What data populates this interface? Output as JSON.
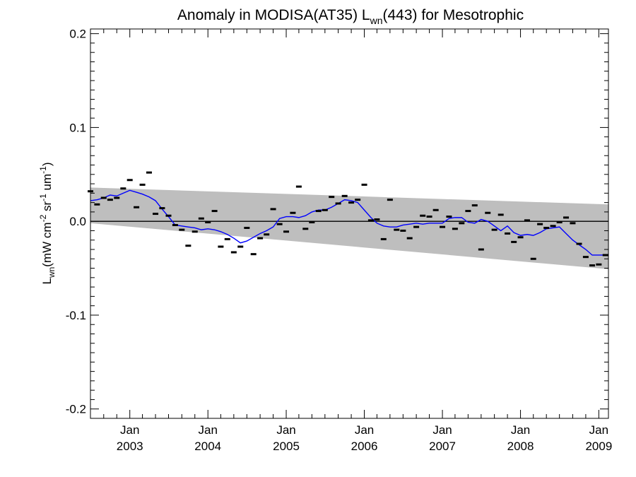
{
  "chart_data": {
    "type": "scatter",
    "title": {
      "prefix": "Anomaly in MODISA(AT35) L",
      "subscript": "wn",
      "suffix": "(443) for Mesotrophic"
    },
    "ylabel": {
      "symbol": "L",
      "symbol_sub": "wn",
      "units_open": "(mW cm",
      "sup1": "-2",
      "mid1": " sr",
      "sup2": "-1",
      "mid2": " um",
      "sup3": "-1",
      "units_close": ")"
    },
    "x_axis": {
      "range": [
        "2002-07-01",
        "2009-02-15"
      ],
      "ticks": [
        {
          "date": "2003-01-01",
          "line1": "Jan",
          "line2": "2003"
        },
        {
          "date": "2004-01-01",
          "line1": "Jan",
          "line2": "2004"
        },
        {
          "date": "2005-01-01",
          "line1": "Jan",
          "line2": "2005"
        },
        {
          "date": "2006-01-01",
          "line1": "Jan",
          "line2": "2006"
        },
        {
          "date": "2007-01-01",
          "line1": "Jan",
          "line2": "2007"
        },
        {
          "date": "2008-01-01",
          "line1": "Jan",
          "line2": "2008"
        },
        {
          "date": "2009-01-01",
          "line1": "Jan",
          "line2": "2009"
        }
      ]
    },
    "y_axis": {
      "range": [
        -0.21,
        0.205
      ],
      "ticks": [
        {
          "value": 0.2,
          "label": "0.2"
        },
        {
          "value": 0.1,
          "label": "0.1"
        },
        {
          "value": 0.0,
          "label": "0.0"
        },
        {
          "value": -0.1,
          "label": "-0.1"
        },
        {
          "value": -0.2,
          "label": "-0.2"
        }
      ]
    },
    "zero_line": 0.0,
    "band": {
      "color": "#bebebe",
      "upper": [
        [
          "2002-07-01",
          0.036
        ],
        [
          "2009-02-15",
          0.018
        ]
      ],
      "lower": [
        [
          "2002-07-01",
          -0.002
        ],
        [
          "2009-02-15",
          -0.051
        ]
      ]
    },
    "series": [
      {
        "kind": "points",
        "color": "#000000",
        "points": [
          [
            "2002-07-01",
            0.032
          ],
          [
            "2002-08-01",
            0.018
          ],
          [
            "2002-09-01",
            0.025
          ],
          [
            "2002-10-01",
            0.023
          ],
          [
            "2002-11-01",
            0.025
          ],
          [
            "2002-12-01",
            0.035
          ],
          [
            "2003-01-01",
            0.044
          ],
          [
            "2003-02-01",
            0.015
          ],
          [
            "2003-03-01",
            0.039
          ],
          [
            "2003-04-01",
            0.052
          ],
          [
            "2003-05-01",
            0.008
          ],
          [
            "2003-06-01",
            0.014
          ],
          [
            "2003-07-01",
            0.006
          ],
          [
            "2003-08-01",
            -0.004
          ],
          [
            "2003-09-01",
            -0.009
          ],
          [
            "2003-10-01",
            -0.026
          ],
          [
            "2003-11-01",
            -0.011
          ],
          [
            "2003-12-01",
            0.003
          ],
          [
            "2004-01-01",
            -0.001
          ],
          [
            "2004-02-01",
            0.011
          ],
          [
            "2004-03-01",
            -0.027
          ],
          [
            "2004-04-01",
            -0.019
          ],
          [
            "2004-05-01",
            -0.033
          ],
          [
            "2004-06-01",
            -0.027
          ],
          [
            "2004-07-01",
            -0.007
          ],
          [
            "2004-08-01",
            -0.035
          ],
          [
            "2004-09-01",
            -0.018
          ],
          [
            "2004-10-01",
            -0.014
          ],
          [
            "2004-11-01",
            0.013
          ],
          [
            "2004-12-01",
            -0.003
          ],
          [
            "2005-01-01",
            -0.011
          ],
          [
            "2005-02-01",
            0.009
          ],
          [
            "2005-03-01",
            0.037
          ],
          [
            "2005-04-01",
            -0.008
          ],
          [
            "2005-05-01",
            -0.001
          ],
          [
            "2005-06-01",
            0.011
          ],
          [
            "2005-07-01",
            0.012
          ],
          [
            "2005-08-01",
            0.026
          ],
          [
            "2005-09-01",
            0.019
          ],
          [
            "2005-10-01",
            0.027
          ],
          [
            "2005-11-01",
            0.02
          ],
          [
            "2005-12-01",
            0.023
          ],
          [
            "2006-01-01",
            0.039
          ],
          [
            "2006-02-01",
            0.001
          ],
          [
            "2006-03-01",
            0.002
          ],
          [
            "2006-04-01",
            -0.019
          ],
          [
            "2006-05-01",
            0.023
          ],
          [
            "2006-06-01",
            -0.009
          ],
          [
            "2006-07-01",
            -0.01
          ],
          [
            "2006-08-01",
            -0.018
          ],
          [
            "2006-09-01",
            -0.006
          ],
          [
            "2006-10-01",
            0.006
          ],
          [
            "2006-11-01",
            0.005
          ],
          [
            "2006-12-01",
            0.012
          ],
          [
            "2007-01-01",
            -0.006
          ],
          [
            "2007-02-01",
            0.005
          ],
          [
            "2007-03-01",
            -0.008
          ],
          [
            "2007-04-01",
            -0.002
          ],
          [
            "2007-05-01",
            0.011
          ],
          [
            "2007-06-01",
            0.017
          ],
          [
            "2007-07-01",
            -0.03
          ],
          [
            "2007-08-01",
            0.009
          ],
          [
            "2007-09-01",
            -0.009
          ],
          [
            "2007-10-01",
            0.007
          ],
          [
            "2007-11-01",
            -0.013
          ],
          [
            "2007-12-01",
            -0.022
          ],
          [
            "2008-01-01",
            -0.017
          ],
          [
            "2008-02-01",
            0.001
          ],
          [
            "2008-03-01",
            -0.04
          ],
          [
            "2008-04-01",
            -0.003
          ],
          [
            "2008-05-01",
            -0.007
          ],
          [
            "2008-06-01",
            -0.005
          ],
          [
            "2008-07-01",
            -0.001
          ],
          [
            "2008-08-01",
            0.004
          ],
          [
            "2008-09-01",
            -0.002
          ],
          [
            "2008-10-01",
            -0.024
          ],
          [
            "2008-11-01",
            -0.038
          ],
          [
            "2008-12-01",
            -0.047
          ],
          [
            "2009-01-01",
            -0.046
          ],
          [
            "2009-02-01",
            -0.036
          ]
        ]
      },
      {
        "kind": "line",
        "color": "#0000ff",
        "points": [
          [
            "2002-07-01",
            0.022
          ],
          [
            "2002-08-01",
            0.023
          ],
          [
            "2002-09-01",
            0.025
          ],
          [
            "2002-10-01",
            0.028
          ],
          [
            "2002-11-01",
            0.027
          ],
          [
            "2002-12-01",
            0.03
          ],
          [
            "2003-01-01",
            0.033
          ],
          [
            "2003-02-01",
            0.031
          ],
          [
            "2003-03-01",
            0.029
          ],
          [
            "2003-04-01",
            0.026
          ],
          [
            "2003-05-01",
            0.022
          ],
          [
            "2003-06-01",
            0.013
          ],
          [
            "2003-07-01",
            0.005
          ],
          [
            "2003-08-01",
            -0.004
          ],
          [
            "2003-09-01",
            -0.005
          ],
          [
            "2003-10-01",
            -0.006
          ],
          [
            "2003-11-01",
            -0.007
          ],
          [
            "2003-12-01",
            -0.009
          ],
          [
            "2004-01-01",
            -0.008
          ],
          [
            "2004-02-01",
            -0.009
          ],
          [
            "2004-03-01",
            -0.011
          ],
          [
            "2004-04-01",
            -0.014
          ],
          [
            "2004-05-01",
            -0.018
          ],
          [
            "2004-06-01",
            -0.023
          ],
          [
            "2004-07-01",
            -0.021
          ],
          [
            "2004-08-01",
            -0.017
          ],
          [
            "2004-09-01",
            -0.013
          ],
          [
            "2004-10-01",
            -0.01
          ],
          [
            "2004-11-01",
            -0.006
          ],
          [
            "2004-12-01",
            0.003
          ],
          [
            "2005-01-01",
            0.005
          ],
          [
            "2005-02-01",
            0.005
          ],
          [
            "2005-03-01",
            0.004
          ],
          [
            "2005-04-01",
            0.006
          ],
          [
            "2005-05-01",
            0.01
          ],
          [
            "2005-06-01",
            0.012
          ],
          [
            "2005-07-01",
            0.012
          ],
          [
            "2005-08-01",
            0.015
          ],
          [
            "2005-09-01",
            0.019
          ],
          [
            "2005-10-01",
            0.023
          ],
          [
            "2005-11-01",
            0.022
          ],
          [
            "2005-12-01",
            0.02
          ],
          [
            "2006-01-01",
            0.012
          ],
          [
            "2006-02-01",
            0.004
          ],
          [
            "2006-03-01",
            -0.002
          ],
          [
            "2006-04-01",
            -0.005
          ],
          [
            "2006-05-01",
            -0.006
          ],
          [
            "2006-06-01",
            -0.006
          ],
          [
            "2006-07-01",
            -0.004
          ],
          [
            "2006-08-01",
            -0.003
          ],
          [
            "2006-09-01",
            -0.002
          ],
          [
            "2006-10-01",
            -0.003
          ],
          [
            "2006-11-01",
            -0.002
          ],
          [
            "2006-12-01",
            -0.002
          ],
          [
            "2007-01-01",
            -0.002
          ],
          [
            "2007-02-01",
            0.003
          ],
          [
            "2007-03-01",
            0.004
          ],
          [
            "2007-04-01",
            0.004
          ],
          [
            "2007-05-01",
            -0.001
          ],
          [
            "2007-06-01",
            -0.002
          ],
          [
            "2007-07-01",
            0.002
          ],
          [
            "2007-08-01",
            0.0
          ],
          [
            "2007-09-01",
            -0.005
          ],
          [
            "2007-10-01",
            -0.01
          ],
          [
            "2007-11-01",
            -0.005
          ],
          [
            "2007-12-01",
            -0.012
          ],
          [
            "2008-01-01",
            -0.015
          ],
          [
            "2008-02-01",
            -0.014
          ],
          [
            "2008-03-01",
            -0.015
          ],
          [
            "2008-04-01",
            -0.012
          ],
          [
            "2008-05-01",
            -0.008
          ],
          [
            "2008-06-01",
            -0.007
          ],
          [
            "2008-07-01",
            -0.006
          ],
          [
            "2008-08-01",
            -0.013
          ],
          [
            "2008-09-01",
            -0.02
          ],
          [
            "2008-10-01",
            -0.025
          ],
          [
            "2008-11-01",
            -0.03
          ],
          [
            "2008-12-01",
            -0.036
          ],
          [
            "2009-01-01",
            -0.036
          ],
          [
            "2009-02-01",
            -0.036
          ]
        ]
      }
    ],
    "grid": false,
    "legend": "none"
  }
}
